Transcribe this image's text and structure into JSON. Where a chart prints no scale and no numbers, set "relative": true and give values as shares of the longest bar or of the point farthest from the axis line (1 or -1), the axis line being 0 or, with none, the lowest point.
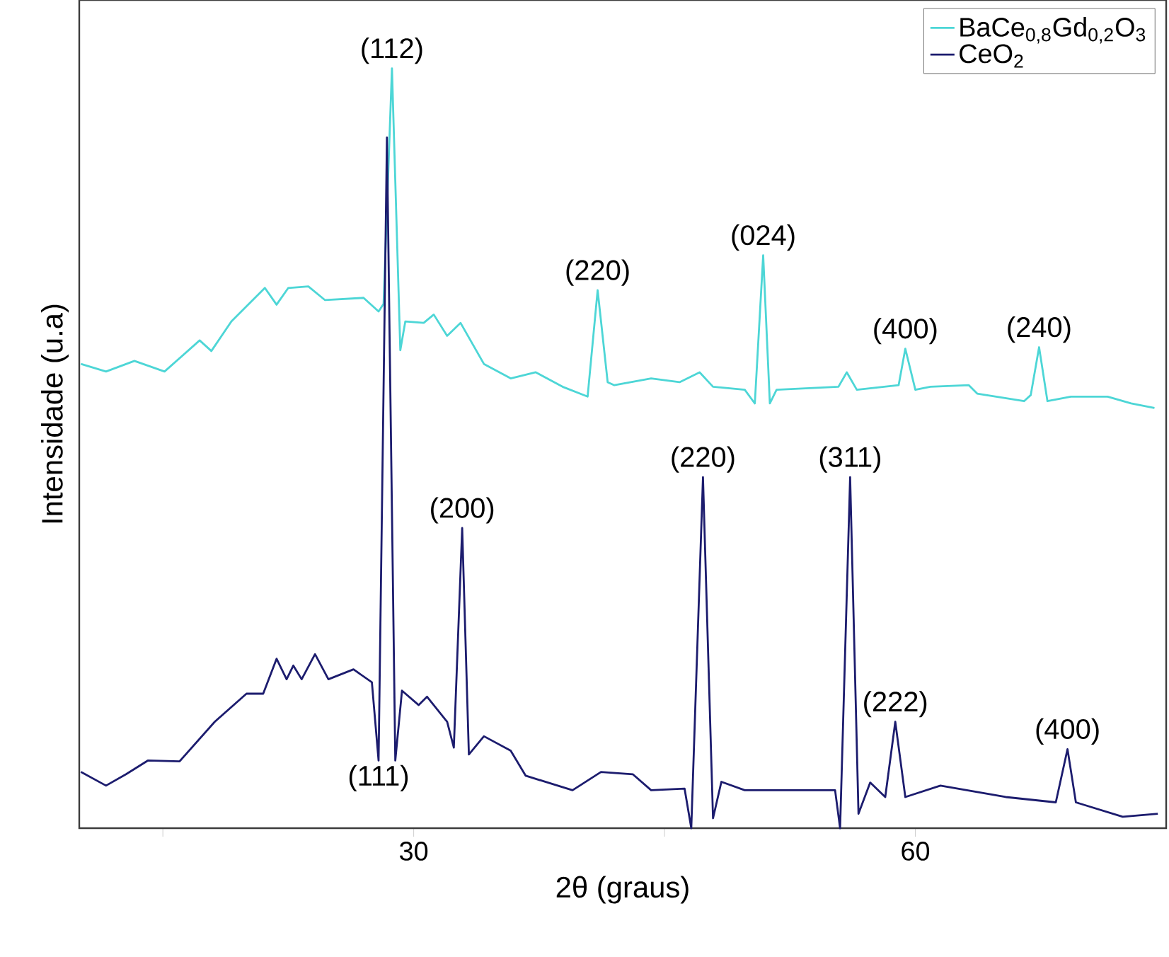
{
  "chart_data": {
    "type": "line",
    "xlabel": "2θ (graus)",
    "ylabel": "Intensidade (u.a)",
    "relative": true,
    "xlim": [
      10,
      75
    ],
    "xticks": [
      {
        "value": 15,
        "label": null
      },
      30,
      {
        "value": 45,
        "label": null
      },
      60
    ],
    "tick_labels": "x",
    "legend": "top right",
    "grid": false,
    "marker": "none",
    "line_style": "solid",
    "series": [
      {
        "name": "BaCe$_{0,8}$Gd$_{0,2}$O$_{3}$",
        "color": "#4dd6d6",
        "x": [
          10.1,
          11.6,
          13.3,
          15.1,
          17.2,
          17.9,
          19.1,
          21.1,
          21.8,
          22.5,
          23.7,
          24.7,
          27.0,
          27.9,
          28.2,
          28.7,
          29.2,
          29.5,
          30.6,
          31.2,
          32.0,
          32.8,
          34.2,
          35.8,
          37.3,
          38.9,
          40.4,
          41.0,
          41.6,
          42.0,
          44.2,
          45.9,
          47.1,
          47.9,
          49.8,
          50.4,
          50.9,
          51.3,
          51.7,
          55.4,
          55.9,
          56.5,
          59.0,
          59.4,
          60.0,
          60.9,
          63.2,
          63.7,
          66.5,
          66.9,
          67.4,
          67.9,
          69.3,
          71.5,
          72.9,
          74.3
        ],
        "values": [
          0.611,
          0.601,
          0.615,
          0.601,
          0.642,
          0.628,
          0.667,
          0.711,
          0.689,
          0.711,
          0.713,
          0.695,
          0.698,
          0.68,
          0.69,
          1.0,
          0.629,
          0.667,
          0.665,
          0.676,
          0.648,
          0.665,
          0.611,
          0.592,
          0.6,
          0.581,
          0.568,
          0.708,
          0.587,
          0.583,
          0.592,
          0.587,
          0.6,
          0.581,
          0.577,
          0.559,
          0.754,
          0.559,
          0.577,
          0.581,
          0.6,
          0.577,
          0.583,
          0.631,
          0.577,
          0.581,
          0.583,
          0.572,
          0.562,
          0.57,
          0.633,
          0.562,
          0.568,
          0.568,
          0.559,
          0.553
        ]
      },
      {
        "name": "CeO$_{2}$",
        "color": "#1c1c6e",
        "x": [
          10.1,
          11.6,
          12.8,
          14.1,
          16.0,
          18.1,
          20.0,
          21.0,
          21.8,
          22.4,
          22.8,
          23.3,
          24.1,
          24.9,
          26.4,
          27.5,
          27.9,
          28.4,
          28.9,
          29.3,
          30.3,
          30.8,
          32.0,
          32.4,
          32.9,
          33.3,
          34.2,
          35.8,
          36.7,
          39.5,
          41.2,
          43.1,
          44.2,
          46.2,
          46.6,
          47.3,
          47.9,
          48.4,
          49.8,
          55.2,
          55.5,
          56.1,
          56.6,
          57.3,
          58.2,
          58.8,
          59.4,
          61.5,
          65.4,
          68.4,
          69.1,
          69.6,
          72.4,
          74.5
        ],
        "values": [
          0.074,
          0.056,
          0.071,
          0.089,
          0.088,
          0.14,
          0.177,
          0.177,
          0.223,
          0.196,
          0.214,
          0.196,
          0.229,
          0.196,
          0.209,
          0.192,
          0.089,
          0.909,
          0.089,
          0.181,
          0.162,
          0.173,
          0.14,
          0.106,
          0.395,
          0.097,
          0.121,
          0.102,
          0.069,
          0.05,
          0.074,
          0.071,
          0.05,
          0.052,
          0.0,
          0.462,
          0.013,
          0.061,
          0.05,
          0.05,
          0.0,
          0.462,
          0.019,
          0.06,
          0.041,
          0.14,
          0.041,
          0.056,
          0.041,
          0.034,
          0.104,
          0.034,
          0.015,
          0.019
        ]
      }
    ],
    "annotations": [
      {
        "text": "(112)",
        "x": 28.7,
        "y": 1.0
      },
      {
        "text": "(220)",
        "x": 41.0,
        "y": 0.708
      },
      {
        "text": "(024)",
        "x": 50.9,
        "y": 0.754
      },
      {
        "text": "(400)",
        "x": 59.4,
        "y": 0.631
      },
      {
        "text": "(240)",
        "x": 67.4,
        "y": 0.633
      },
      {
        "text": "(200)",
        "x": 32.9,
        "y": 0.395
      },
      {
        "text": "(220)",
        "x": 47.3,
        "y": 0.462
      },
      {
        "text": "(311)",
        "x": 56.1,
        "y": 0.462
      },
      {
        "text": "(222)",
        "x": 58.8,
        "y": 0.14
      },
      {
        "text": "(400)",
        "x": 69.1,
        "y": 0.104
      },
      {
        "text": "(111)",
        "x": 27.9,
        "y": 0.089
      }
    ]
  }
}
